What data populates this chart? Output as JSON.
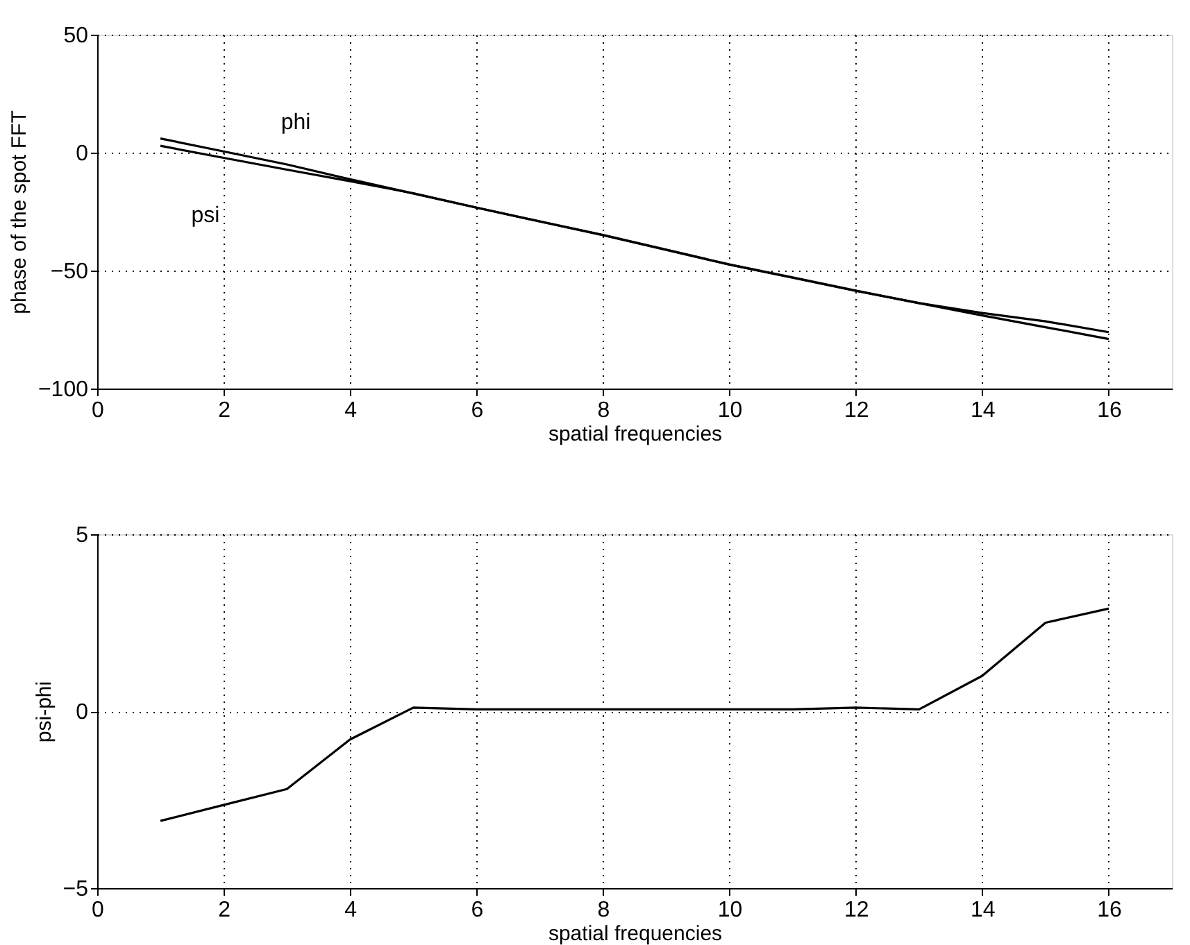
{
  "chart_data": [
    {
      "type": "line",
      "xlabel": "spatial frequencies",
      "ylabel": "phase of the spot FFT",
      "x": [
        1,
        2,
        3,
        4,
        5,
        6,
        7,
        8,
        9,
        10,
        11,
        12,
        13,
        14,
        15,
        16
      ],
      "series": [
        {
          "color": "#000000",
          "values": [
            6,
            0.5,
            -5,
            -11.3,
            -17.3,
            -23.3,
            -29.2,
            -35,
            -41.2,
            -47.5,
            -53,
            -58.6,
            -63.8,
            -69,
            -74,
            -79
          ]
        },
        {
          "color": "#000000",
          "values": [
            2.9,
            -2.2,
            -7.2,
            -12.1,
            -17.2,
            -23.3,
            -29.1,
            -34.9,
            -41.1,
            -47.4,
            -52.9,
            -58.5,
            -63.8,
            -68,
            -71.5,
            -76.1
          ]
        }
      ],
      "annotations": [
        "phi",
        "psi"
      ],
      "xlim": [
        0,
        17
      ],
      "xticks": [
        0,
        2,
        4,
        6,
        8,
        10,
        12,
        14,
        16
      ],
      "ylim": [
        -100,
        50
      ],
      "yticks": [
        -100,
        -50,
        0,
        50
      ],
      "grid": true,
      "line_style": "solid",
      "marker": "none"
    },
    {
      "type": "line",
      "xlabel": "spatial frequencies",
      "ylabel": "psi-phi",
      "x": [
        1,
        2,
        3,
        4,
        5,
        6,
        7,
        8,
        9,
        10,
        11,
        12,
        13,
        14,
        15,
        16
      ],
      "series": [
        {
          "color": "#000000",
          "values": [
            -3.1,
            -2.65,
            -2.2,
            -0.8,
            0.1,
            0.05,
            0.05,
            0.05,
            0.05,
            0.05,
            0.05,
            0.1,
            0.05,
            1.0,
            2.5,
            2.9
          ]
        }
      ],
      "xlim": [
        0,
        17
      ],
      "xticks": [
        0,
        2,
        4,
        6,
        8,
        10,
        12,
        14,
        16
      ],
      "ylim": [
        -5,
        5
      ],
      "yticks": [
        -5,
        0,
        5
      ],
      "grid": true,
      "line_style": "solid",
      "marker": "none"
    }
  ]
}
